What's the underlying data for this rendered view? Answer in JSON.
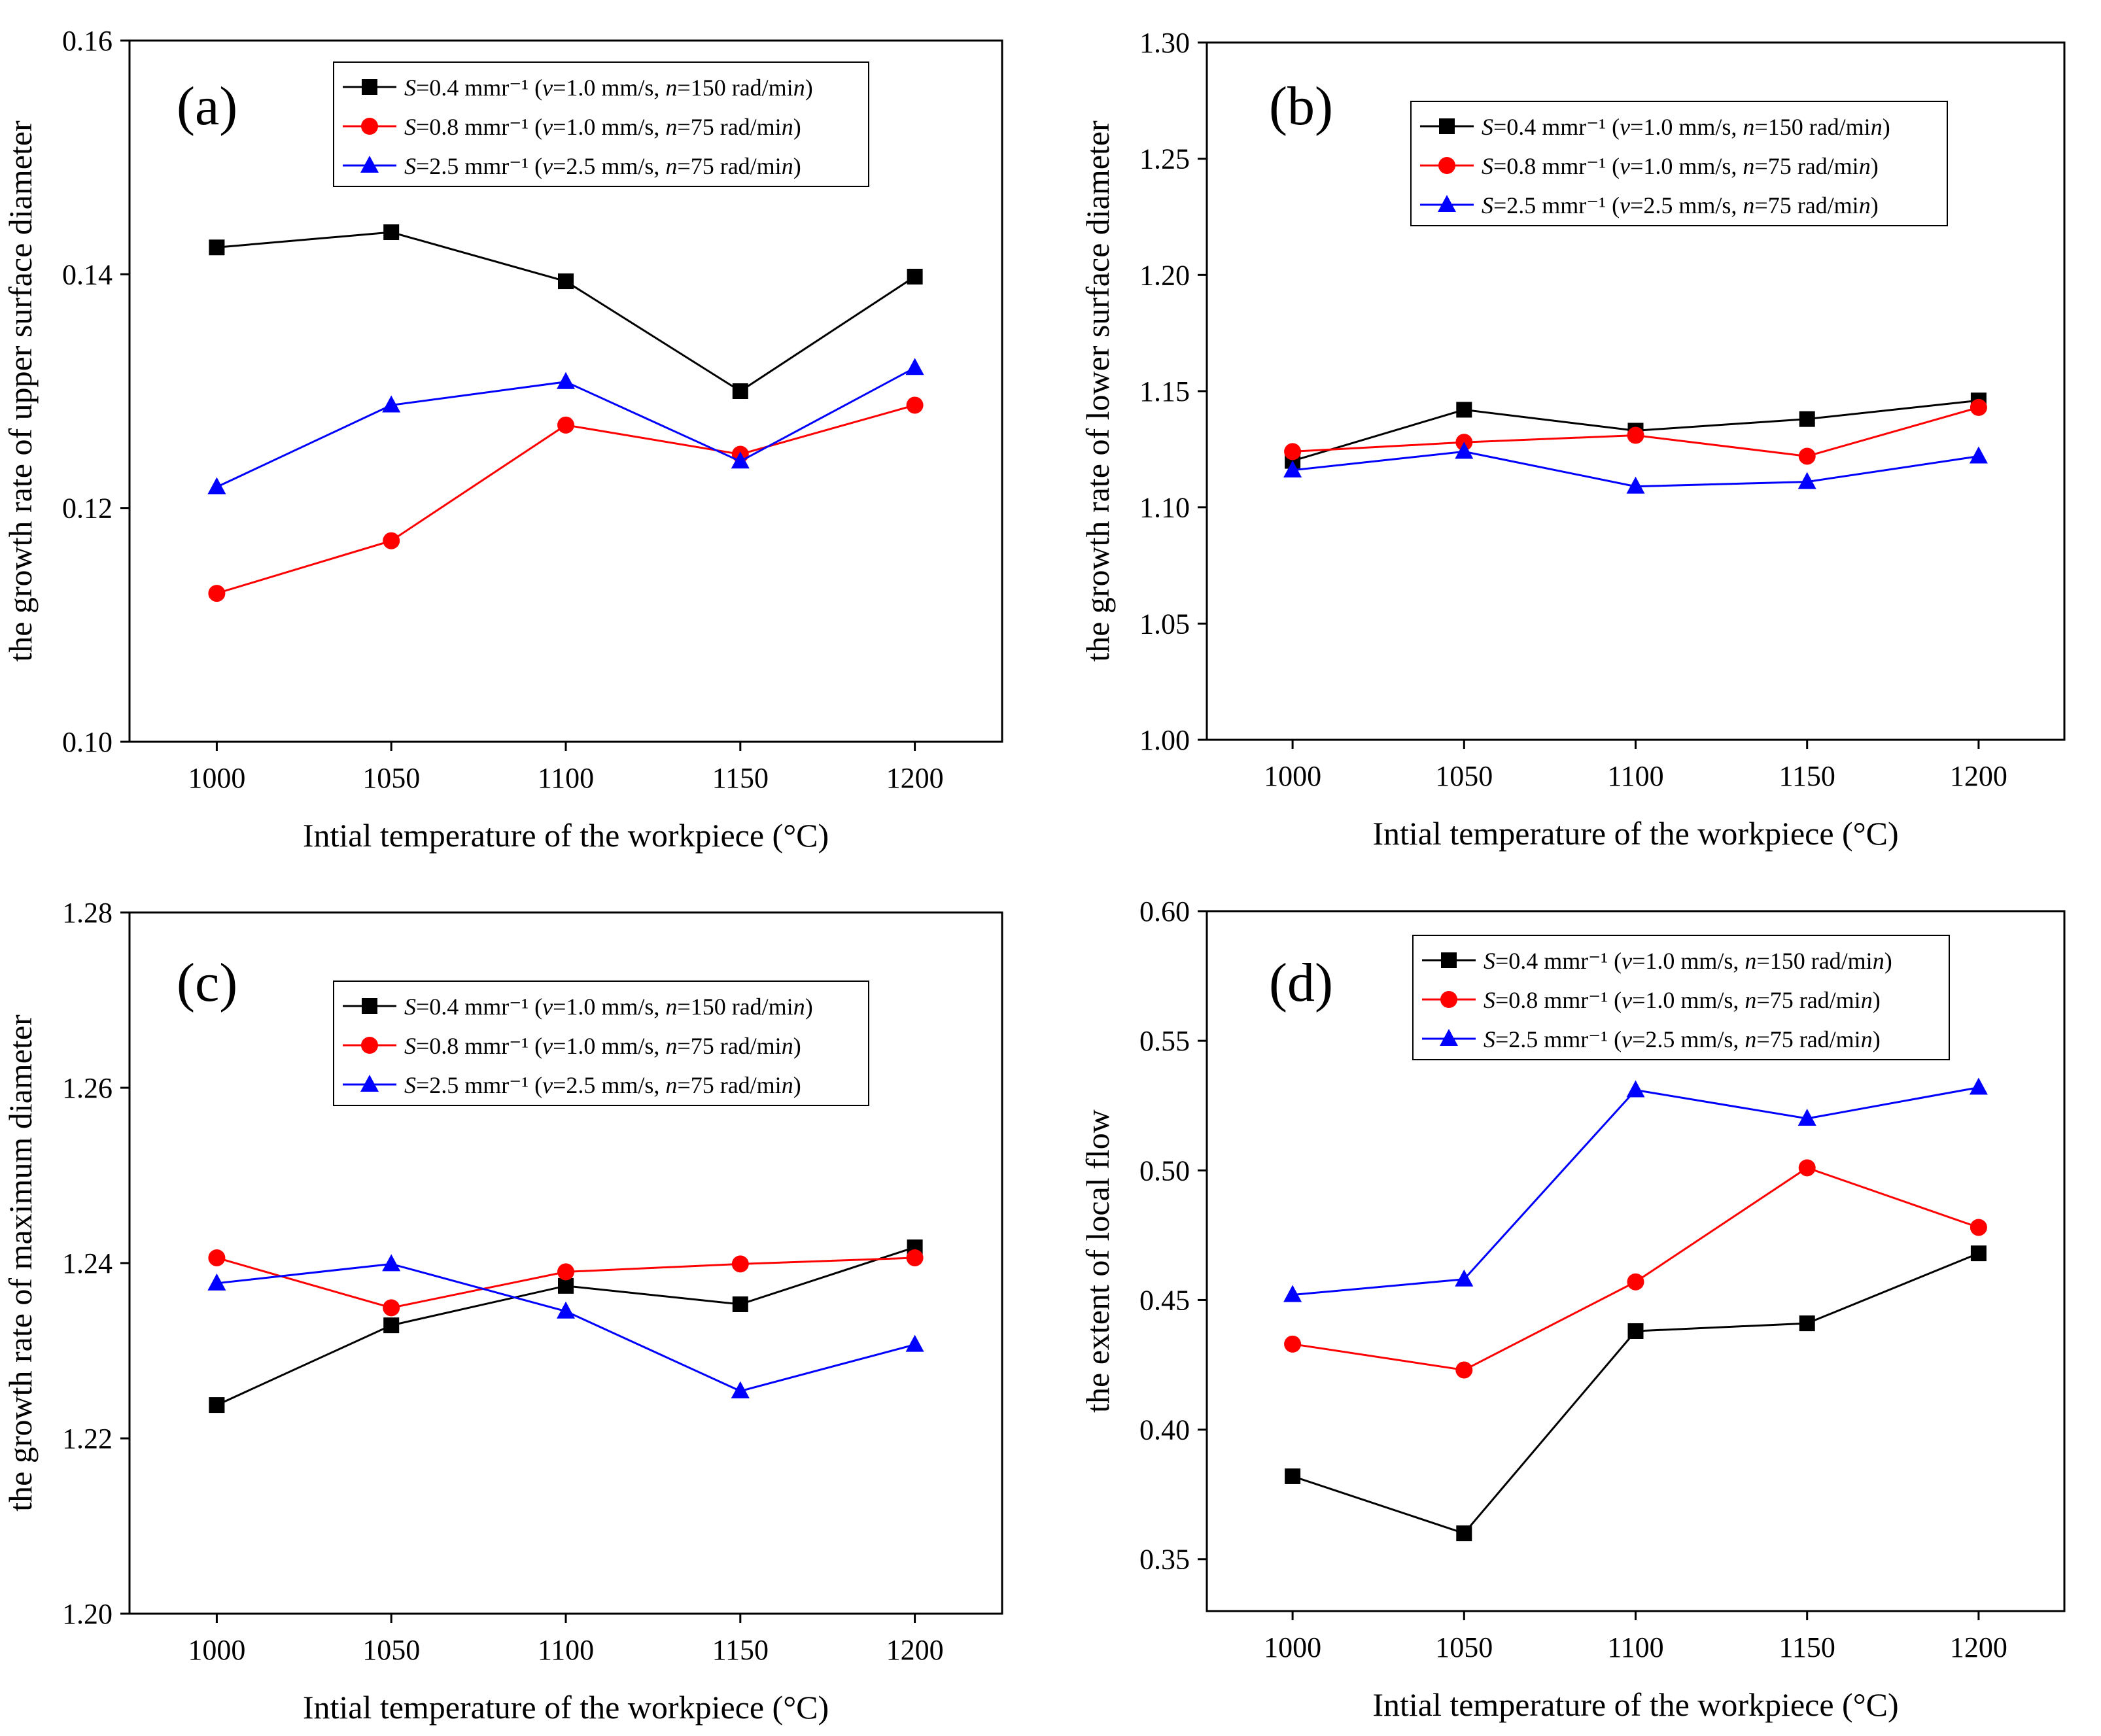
{
  "figure": {
    "panels": [
      "(a)",
      "(b)",
      "(c)",
      "(d)"
    ]
  },
  "colors": {
    "series1": "#000000",
    "series2": "#ff0000",
    "series3": "#0000ff"
  },
  "chart_data": [
    {
      "type": "line",
      "panel": "(a)",
      "xlabel": "Intial temperature of the workpiece (°C)",
      "ylabel": "the growth rate of upper surface diameter",
      "x": [
        1000,
        1050,
        1100,
        1150,
        1200
      ],
      "xlim": [
        975,
        1225
      ],
      "ylim": [
        0.1,
        0.16
      ],
      "yticks": [
        "0.10",
        "0.12",
        "0.14",
        "0.16"
      ],
      "legend_position": "top-right",
      "series": [
        {
          "name": "S=0.4 mmr⁻¹ (v=1.0 mm/s, n=150 rad/min)",
          "marker": "square",
          "color": "#000000",
          "values": [
            0.1423,
            0.1436,
            0.1394,
            0.13,
            0.1398
          ]
        },
        {
          "name": "S=0.8 mmr⁻¹ (v=1.0 mm/s, n=75 rad/min)",
          "marker": "circle",
          "color": "#ff0000",
          "values": [
            0.1127,
            0.1172,
            0.1271,
            0.1246,
            0.1288
          ]
        },
        {
          "name": "S=2.5 mmr⁻¹ (v=2.5 mm/s, n=75 rad/min)",
          "marker": "triangle",
          "color": "#0000ff",
          "values": [
            0.1218,
            0.1288,
            0.1308,
            0.124,
            0.132
          ]
        }
      ]
    },
    {
      "type": "line",
      "panel": "(b)",
      "xlabel": "Intial temperature of the workpiece (°C)",
      "ylabel": "the growth rate of lower surface diameter",
      "x": [
        1000,
        1050,
        1100,
        1150,
        1200
      ],
      "xlim": [
        975,
        1225
      ],
      "ylim": [
        1.0,
        1.3
      ],
      "yticks": [
        "1.00",
        "1.05",
        "1.10",
        "1.15",
        "1.20",
        "1.25",
        "1.30"
      ],
      "legend_position": "top-right",
      "series": [
        {
          "name": "S=0.4 mmr⁻¹ (v=1.0 mm/s, n=150 rad/min)",
          "marker": "square",
          "color": "#000000",
          "values": [
            1.12,
            1.142,
            1.133,
            1.138,
            1.146
          ]
        },
        {
          "name": "S=0.8 mmr⁻¹ (v=1.0 mm/s, n=75 rad/min)",
          "marker": "circle",
          "color": "#ff0000",
          "values": [
            1.124,
            1.128,
            1.131,
            1.122,
            1.143
          ]
        },
        {
          "name": "S=2.5 mmr⁻¹ (v=2.5 mm/s, n=75 rad/min)",
          "marker": "triangle",
          "color": "#0000ff",
          "values": [
            1.116,
            1.124,
            1.109,
            1.111,
            1.122
          ]
        }
      ]
    },
    {
      "type": "line",
      "panel": "(c)",
      "xlabel": "Intial temperature of the workpiece (°C)",
      "ylabel": "the growth rate of maximum diameter",
      "x": [
        1000,
        1050,
        1100,
        1150,
        1200
      ],
      "xlim": [
        975,
        1225
      ],
      "ylim": [
        1.2,
        1.28
      ],
      "yticks": [
        "1.20",
        "1.22",
        "1.24",
        "1.26",
        "1.28"
      ],
      "legend_position": "top-right",
      "series": [
        {
          "name": "S=0.4 mmr⁻¹ (v=1.0 mm/s, n=150 rad/min)",
          "marker": "square",
          "color": "#000000",
          "values": [
            1.2238,
            1.2329,
            1.2374,
            1.2353,
            1.2418
          ]
        },
        {
          "name": "S=0.8 mmr⁻¹ (v=1.0 mm/s, n=75 rad/min)",
          "marker": "circle",
          "color": "#ff0000",
          "values": [
            1.2406,
            1.2349,
            1.239,
            1.2399,
            1.2406
          ]
        },
        {
          "name": "S=2.5 mmr⁻¹ (v=2.5 mm/s, n=75 rad/min)",
          "marker": "triangle",
          "color": "#0000ff",
          "values": [
            1.2377,
            1.2399,
            1.2345,
            1.2254,
            1.2307
          ]
        }
      ]
    },
    {
      "type": "line",
      "panel": "(d)",
      "xlabel": "Intial temperature of the workpiece (°C)",
      "ylabel": "the extent of local flow",
      "x": [
        1000,
        1050,
        1100,
        1150,
        1200
      ],
      "xlim": [
        975,
        1225
      ],
      "ylim": [
        0.33,
        0.6
      ],
      "yticks": [
        "0.35",
        "0.40",
        "0.45",
        "0.50",
        "0.55",
        "0.60"
      ],
      "legend_position": "top-left",
      "series": [
        {
          "name": "S=0.4 mmr⁻¹ (v=1.0 mm/s, n=150 rad/min)",
          "marker": "square",
          "color": "#000000",
          "values": [
            0.382,
            0.36,
            0.438,
            0.441,
            0.468
          ]
        },
        {
          "name": "S=0.8 mmr⁻¹ (v=1.0 mm/s, n=75 rad/min)",
          "marker": "circle",
          "color": "#ff0000",
          "values": [
            0.433,
            0.423,
            0.457,
            0.501,
            0.478
          ]
        },
        {
          "name": "S=2.5 mmr⁻¹ (v=2.5 mm/s, n=75 rad/min)",
          "marker": "triangle",
          "color": "#0000ff",
          "values": [
            0.452,
            0.458,
            0.531,
            0.52,
            0.532
          ]
        }
      ]
    }
  ]
}
